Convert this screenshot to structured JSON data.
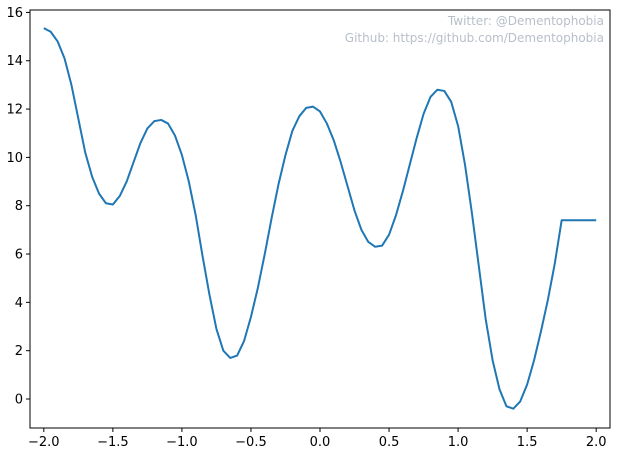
{
  "chart_data": {
    "type": "line",
    "title": "",
    "xlabel": "",
    "ylabel": "",
    "xlim": [
      -2.1,
      2.1
    ],
    "ylim": [
      -1.2,
      16.1
    ],
    "grid": false,
    "line_color": "#1f77b4",
    "x_ticks": [
      -2.0,
      -1.5,
      -1.0,
      -0.5,
      0.0,
      0.5,
      1.0,
      1.5,
      2.0
    ],
    "x_tick_labels": [
      "−2.0",
      "−1.5",
      "−1.0",
      "−0.5",
      "0.0",
      "0.5",
      "1.0",
      "1.5",
      "2.0"
    ],
    "y_ticks": [
      0,
      2,
      4,
      6,
      8,
      10,
      12,
      14,
      16
    ],
    "y_tick_labels": [
      "0",
      "2",
      "4",
      "6",
      "8",
      "10",
      "12",
      "14",
      "16"
    ],
    "series": [
      {
        "x": [
          -2.0,
          -1.95,
          -1.9,
          -1.85,
          -1.8,
          -1.75,
          -1.7,
          -1.65,
          -1.6,
          -1.55,
          -1.5,
          -1.45,
          -1.4,
          -1.35,
          -1.3,
          -1.25,
          -1.2,
          -1.15,
          -1.1,
          -1.05,
          -1.0,
          -0.95,
          -0.9,
          -0.85,
          -0.8,
          -0.75,
          -0.7,
          -0.65,
          -0.6,
          -0.55,
          -0.5,
          -0.45,
          -0.4,
          -0.35,
          -0.3,
          -0.25,
          -0.2,
          -0.15,
          -0.1,
          -0.05,
          0.0,
          0.05,
          0.1,
          0.15,
          0.2,
          0.25,
          0.3,
          0.35,
          0.4,
          0.45,
          0.5,
          0.55,
          0.6,
          0.65,
          0.7,
          0.75,
          0.8,
          0.85,
          0.9,
          0.95,
          1.0,
          1.05,
          1.1,
          1.15,
          1.2,
          1.25,
          1.3,
          1.35,
          1.4,
          1.45,
          1.5,
          1.55,
          1.6,
          1.65,
          1.7,
          1.75,
          1.8,
          1.85,
          1.9,
          1.95,
          2.0
        ],
        "y": [
          15.35,
          15.2,
          14.8,
          14.1,
          13.0,
          11.6,
          10.2,
          9.2,
          8.5,
          8.1,
          8.05,
          8.4,
          9.0,
          9.8,
          10.6,
          11.2,
          11.5,
          11.55,
          11.4,
          10.9,
          10.1,
          9.0,
          7.6,
          5.9,
          4.3,
          2.9,
          2.0,
          1.7,
          1.8,
          2.4,
          3.4,
          4.6,
          6.0,
          7.5,
          8.9,
          10.1,
          11.1,
          11.7,
          12.05,
          12.1,
          11.9,
          11.4,
          10.7,
          9.8,
          8.8,
          7.8,
          7.0,
          6.5,
          6.3,
          6.35,
          6.8,
          7.6,
          8.6,
          9.7,
          10.8,
          11.8,
          12.5,
          12.8,
          12.75,
          12.3,
          11.3,
          9.7,
          7.7,
          5.5,
          3.3,
          1.6,
          0.4,
          -0.3,
          -0.4,
          -0.1,
          0.6,
          1.6,
          2.8,
          4.1,
          5.6,
          7.4,
          7.4,
          7.4,
          7.4,
          7.4,
          7.4
        ]
      }
    ]
  },
  "watermark": {
    "line1": "Twitter: @Dementophobia",
    "line2": "Github: https://github.com/Dementophobia"
  }
}
